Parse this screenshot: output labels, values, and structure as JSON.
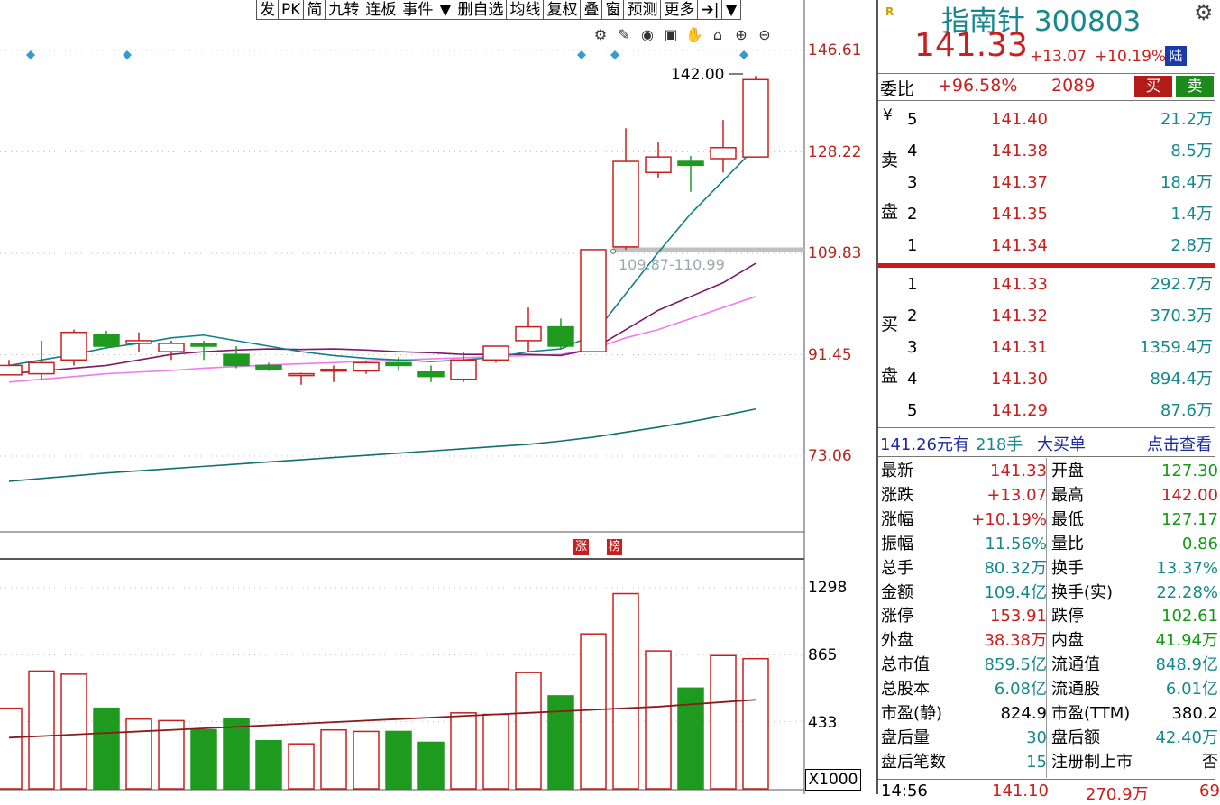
{
  "toolbar": {
    "items": [
      "发",
      "PK",
      "简",
      "九转",
      "连板",
      "事件",
      "▼",
      "删自选",
      "均线",
      "复权",
      "叠",
      "窗",
      "预测",
      "更多",
      "➔|",
      "▼"
    ]
  },
  "chart": {
    "price_axis": [
      "146.61",
      "128.22",
      "109.83",
      "91.45",
      "73.06"
    ],
    "volume_axis": [
      "1298",
      "865",
      "433"
    ],
    "volume_unit": "X1000",
    "high_marker": "142.00",
    "gap_label": "109.87-110.99",
    "tags": [
      "涨",
      "榜"
    ],
    "icons": [
      "gear-icon",
      "pen-icon",
      "eye-icon",
      "briefcase-icon",
      "hand-icon",
      "lock-icon",
      "zoom-in-icon",
      "zoom-out-icon"
    ],
    "colors": {
      "up": "#c8201e",
      "down": "#1e9a1e",
      "ma5": "#12808a",
      "ma10": "#7a1a6a",
      "ma20": "#ee7aee",
      "ma60": "#14706e",
      "vol_ma": "#8b1a1a"
    }
  },
  "chart_data": {
    "type": "candlestick",
    "candles": [
      {
        "o": 89.5,
        "h": 90.5,
        "l": 88.0,
        "c": 87.8,
        "dir": "up"
      },
      {
        "o": 88.0,
        "h": 94.0,
        "l": 87.0,
        "c": 90.0,
        "dir": "up"
      },
      {
        "o": 90.5,
        "h": 96.0,
        "l": 89.5,
        "c": 95.5,
        "dir": "up"
      },
      {
        "o": 95.0,
        "h": 95.8,
        "l": 92.5,
        "c": 93.0,
        "dir": "down"
      },
      {
        "o": 93.5,
        "h": 95.5,
        "l": 92.0,
        "c": 94.0,
        "dir": "up"
      },
      {
        "o": 92.0,
        "h": 94.0,
        "l": 90.5,
        "c": 93.5,
        "dir": "up"
      },
      {
        "o": 93.5,
        "h": 94.0,
        "l": 90.5,
        "c": 93.0,
        "dir": "down"
      },
      {
        "o": 91.5,
        "h": 93.0,
        "l": 89.0,
        "c": 89.5,
        "dir": "down"
      },
      {
        "o": 89.5,
        "h": 90.0,
        "l": 88.5,
        "c": 88.8,
        "dir": "down"
      },
      {
        "o": 87.8,
        "h": 88.2,
        "l": 86.0,
        "c": 88.0,
        "dir": "up"
      },
      {
        "o": 88.5,
        "h": 89.5,
        "l": 86.5,
        "c": 88.8,
        "dir": "up"
      },
      {
        "o": 88.5,
        "h": 90.3,
        "l": 88.0,
        "c": 90.0,
        "dir": "up"
      },
      {
        "o": 89.5,
        "h": 91.0,
        "l": 88.5,
        "c": 90.0,
        "dir": "down"
      },
      {
        "o": 88.3,
        "h": 89.5,
        "l": 86.5,
        "c": 87.5,
        "dir": "down"
      },
      {
        "o": 87.0,
        "h": 92.0,
        "l": 86.5,
        "c": 90.5,
        "dir": "up"
      },
      {
        "o": 90.5,
        "h": 93.0,
        "l": 90.0,
        "c": 93.0,
        "dir": "up"
      },
      {
        "o": 94.0,
        "h": 100.0,
        "l": 92.0,
        "c": 96.5,
        "dir": "up"
      },
      {
        "o": 96.5,
        "h": 98.0,
        "l": 92.5,
        "c": 93.0,
        "dir": "down"
      },
      {
        "o": 92.0,
        "h": 110.5,
        "l": 92.0,
        "c": 110.5,
        "dir": "up"
      },
      {
        "o": 111.0,
        "h": 132.5,
        "l": 110.5,
        "c": 126.5,
        "dir": "up"
      },
      {
        "o": 124.5,
        "h": 130.0,
        "l": 123.5,
        "c": 127.3,
        "dir": "up"
      },
      {
        "o": 126.5,
        "h": 127.5,
        "l": 121.0,
        "c": 125.8,
        "dir": "down"
      },
      {
        "o": 127.0,
        "h": 134.0,
        "l": 124.5,
        "c": 129.0,
        "dir": "up"
      },
      {
        "o": 127.3,
        "h": 142.0,
        "l": 127.2,
        "c": 141.33,
        "dir": "up"
      }
    ],
    "volumes": [
      {
        "v": 520,
        "dir": "up"
      },
      {
        "v": 760,
        "dir": "up"
      },
      {
        "v": 740,
        "dir": "up"
      },
      {
        "v": 520,
        "dir": "down"
      },
      {
        "v": 450,
        "dir": "up"
      },
      {
        "v": 440,
        "dir": "up"
      },
      {
        "v": 380,
        "dir": "down"
      },
      {
        "v": 450,
        "dir": "down"
      },
      {
        "v": 310,
        "dir": "down"
      },
      {
        "v": 290,
        "dir": "up"
      },
      {
        "v": 380,
        "dir": "up"
      },
      {
        "v": 370,
        "dir": "up"
      },
      {
        "v": 370,
        "dir": "down"
      },
      {
        "v": 300,
        "dir": "down"
      },
      {
        "v": 490,
        "dir": "up"
      },
      {
        "v": 480,
        "dir": "up"
      },
      {
        "v": 750,
        "dir": "up"
      },
      {
        "v": 600,
        "dir": "down"
      },
      {
        "v": 1000,
        "dir": "up"
      },
      {
        "v": 1260,
        "dir": "up"
      },
      {
        "v": 890,
        "dir": "up"
      },
      {
        "v": 650,
        "dir": "down"
      },
      {
        "v": 860,
        "dir": "up"
      },
      {
        "v": 840,
        "dir": "up"
      }
    ],
    "ma5": [
      89.5,
      90.5,
      91.5,
      92.7,
      93.5,
      94.5,
      95.0,
      94.0,
      93.0,
      92.0,
      91.3,
      90.8,
      90.5,
      90.2,
      90.5,
      91.0,
      92.0,
      92.5,
      95.0,
      102.5,
      110.0,
      117.0,
      123.0,
      129.0
    ],
    "ma10": [
      88.0,
      88.5,
      89.0,
      89.5,
      90.5,
      91.5,
      92.0,
      92.3,
      92.5,
      92.4,
      92.5,
      92.3,
      92.0,
      91.8,
      91.5,
      91.5,
      91.5,
      91.3,
      92.5,
      96.0,
      99.5,
      102.0,
      104.5,
      108.0
    ],
    "ma20": [
      86.5,
      87.0,
      87.5,
      88.0,
      88.3,
      88.6,
      89.0,
      89.3,
      89.6,
      89.8,
      90.0,
      90.3,
      90.5,
      90.7,
      90.9,
      91.1,
      91.3,
      91.5,
      92.5,
      94.5,
      96.0,
      98.0,
      100.0,
      102.0
    ],
    "ma60": [
      68.5,
      69.0,
      69.5,
      70.0,
      70.4,
      70.8,
      71.2,
      71.6,
      72.0,
      72.4,
      72.8,
      73.2,
      73.6,
      74.0,
      74.4,
      74.8,
      75.2,
      75.8,
      76.5,
      77.4,
      78.3,
      79.3,
      80.4,
      81.6
    ],
    "vol_ma": [
      330,
      340,
      350,
      360,
      370,
      380,
      390,
      400,
      410,
      420,
      430,
      440,
      450,
      460,
      470,
      480,
      490,
      500,
      510,
      520,
      530,
      545,
      560,
      575
    ]
  },
  "panel": {
    "title": "指南针 300803",
    "price": "141.33",
    "change": "+13.07",
    "change_pct": "+10.19%",
    "tag": "陆",
    "wb_label": "委比",
    "wb_value": "+96.58%",
    "wb_count": "2089",
    "buy_btn": "买",
    "sell_btn": "卖",
    "sell_side_label": [
      "¥",
      "卖",
      "盘"
    ],
    "buy_side_label": [
      "买",
      "盘"
    ],
    "asks": [
      {
        "lvl": "5",
        "price": "141.40",
        "vol": "21.2万"
      },
      {
        "lvl": "4",
        "price": "141.38",
        "vol": "8.5万"
      },
      {
        "lvl": "3",
        "price": "141.37",
        "vol": "18.4万"
      },
      {
        "lvl": "2",
        "price": "141.35",
        "vol": "1.4万"
      },
      {
        "lvl": "1",
        "price": "141.34",
        "vol": "2.8万"
      }
    ],
    "bids": [
      {
        "lvl": "1",
        "price": "141.33",
        "vol": "292.7万"
      },
      {
        "lvl": "2",
        "price": "141.32",
        "vol": "370.3万"
      },
      {
        "lvl": "3",
        "price": "141.31",
        "vol": "1359.4万"
      },
      {
        "lvl": "4",
        "price": "141.30",
        "vol": "894.4万"
      },
      {
        "lvl": "5",
        "price": "141.29",
        "vol": "87.6万"
      }
    ],
    "big_order": {
      "price": "141.26元有",
      "hands": "218手",
      "label": "大买单",
      "link": "点击查看"
    },
    "stats": [
      {
        "k1": "最新",
        "v1": "141.33",
        "c1": "red",
        "k2": "开盘",
        "v2": "127.30",
        "c2": "green"
      },
      {
        "k1": "涨跌",
        "v1": "+13.07",
        "c1": "red",
        "k2": "最高",
        "v2": "142.00",
        "c2": "red"
      },
      {
        "k1": "涨幅",
        "v1": "+10.19%",
        "c1": "red",
        "k2": "最低",
        "v2": "127.17",
        "c2": "green"
      },
      {
        "k1": "振幅",
        "v1": "11.56%",
        "c1": "teal",
        "k2": "量比",
        "v2": "0.86",
        "c2": "green"
      },
      {
        "k1": "总手",
        "v1": "80.32万",
        "c1": "teal",
        "k2": "换手",
        "v2": "13.37%",
        "c2": "teal"
      },
      {
        "k1": "金额",
        "v1": "109.4亿",
        "c1": "teal",
        "k2": "换手(实)",
        "v2": "22.28%",
        "c2": "teal"
      },
      {
        "k1": "涨停",
        "v1": "153.91",
        "c1": "red",
        "k2": "跌停",
        "v2": "102.61",
        "c2": "green"
      },
      {
        "k1": "外盘",
        "v1": "38.38万",
        "c1": "red",
        "k2": "内盘",
        "v2": "41.94万",
        "c2": "green"
      },
      {
        "k1": "总市值",
        "v1": "859.5亿",
        "c1": "teal",
        "k2": "流通值",
        "v2": "848.9亿",
        "c2": "teal"
      },
      {
        "k1": "总股本",
        "v1": "6.08亿",
        "c1": "teal",
        "k2": "流通股",
        "v2": "6.01亿",
        "c2": "teal"
      },
      {
        "k1": "市盈(静)",
        "v1": "824.9",
        "c1": "black",
        "k2": "市盈(TTM)",
        "v2": "380.2",
        "c2": "black"
      },
      {
        "k1": "盘后量",
        "v1": "30",
        "c1": "teal",
        "k2": "盘后额",
        "v2": "42.40万",
        "c2": "teal"
      },
      {
        "k1": "盘后笔数",
        "v1": "15",
        "c1": "teal",
        "k2": "注册制上市",
        "v2": "否",
        "c2": "black"
      }
    ],
    "tick": {
      "time": "14:56",
      "price": "141.10",
      "vol": "270.9万",
      "x": "69"
    }
  }
}
